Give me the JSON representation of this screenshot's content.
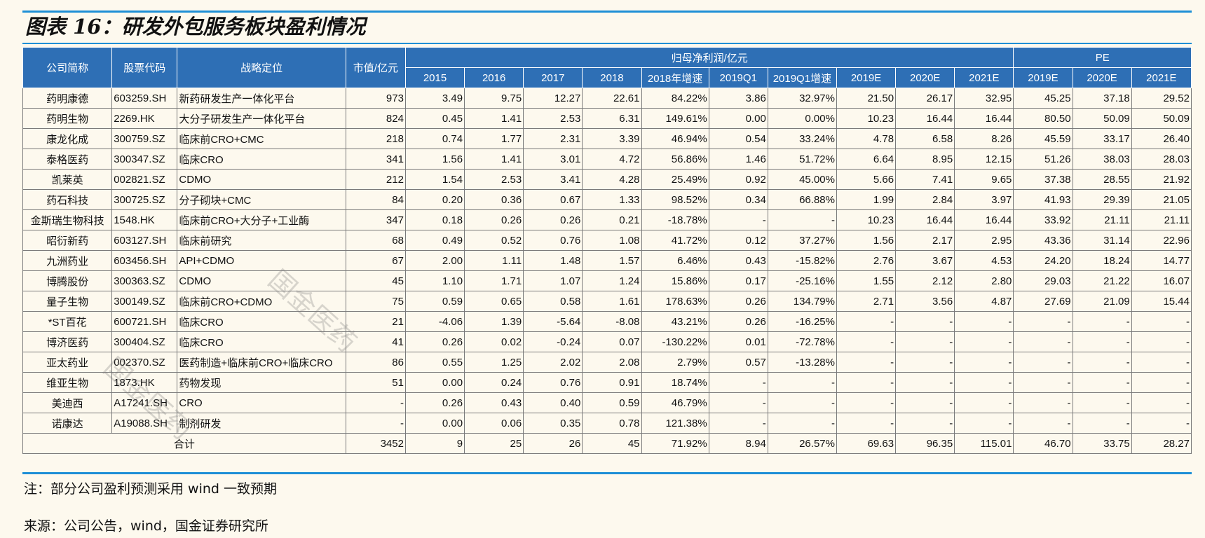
{
  "title": "图表 16：研发外包服务板块盈利情况",
  "header": {
    "company": "公司简称",
    "code": "股票代码",
    "strategy": "战略定位",
    "mktcap": "市值/亿元",
    "profit_group": "归母净利润/亿元",
    "pe_group": "PE",
    "profit_cols": [
      "2015",
      "2016",
      "2017",
      "2018",
      "2018年增速",
      "2019Q1",
      "2019Q1增速",
      "2019E",
      "2020E",
      "2021E"
    ],
    "pe_cols": [
      "2019E",
      "2020E",
      "2021E"
    ]
  },
  "rows": [
    [
      "药明康德",
      "603259.SH",
      "新药研发生产一体化平台",
      "973",
      "3.49",
      "9.75",
      "12.27",
      "22.61",
      "84.22%",
      "3.86",
      "32.97%",
      "21.50",
      "26.17",
      "32.95",
      "45.25",
      "37.18",
      "29.52"
    ],
    [
      "药明生物",
      "2269.HK",
      "大分子研发生产一体化平台",
      "824",
      "0.45",
      "1.41",
      "2.53",
      "6.31",
      "149.61%",
      "0.00",
      "0.00%",
      "10.23",
      "16.44",
      "16.44",
      "80.50",
      "50.09",
      "50.09"
    ],
    [
      "康龙化成",
      "300759.SZ",
      "临床前CRO+CMC",
      "218",
      "0.74",
      "1.77",
      "2.31",
      "3.39",
      "46.94%",
      "0.54",
      "33.24%",
      "4.78",
      "6.58",
      "8.26",
      "45.59",
      "33.17",
      "26.40"
    ],
    [
      "泰格医药",
      "300347.SZ",
      "临床CRO",
      "341",
      "1.56",
      "1.41",
      "3.01",
      "4.72",
      "56.86%",
      "1.46",
      "51.72%",
      "6.64",
      "8.95",
      "12.15",
      "51.26",
      "38.03",
      "28.03"
    ],
    [
      "凯莱英",
      "002821.SZ",
      "CDMO",
      "212",
      "1.54",
      "2.53",
      "3.41",
      "4.28",
      "25.49%",
      "0.92",
      "45.00%",
      "5.66",
      "7.41",
      "9.65",
      "37.38",
      "28.55",
      "21.92"
    ],
    [
      "药石科技",
      "300725.SZ",
      "分子砌块+CMC",
      "84",
      "0.20",
      "0.36",
      "0.67",
      "1.33",
      "98.52%",
      "0.34",
      "66.88%",
      "1.99",
      "2.84",
      "3.97",
      "41.93",
      "29.39",
      "21.05"
    ],
    [
      "金斯瑞生物科技",
      "1548.HK",
      "临床前CRO+大分子+工业酶",
      "347",
      "0.18",
      "0.26",
      "0.26",
      "0.21",
      "-18.78%",
      "-",
      "-",
      "10.23",
      "16.44",
      "16.44",
      "33.92",
      "21.11",
      "21.11"
    ],
    [
      "昭衍新药",
      "603127.SH",
      "临床前研究",
      "68",
      "0.49",
      "0.52",
      "0.76",
      "1.08",
      "41.72%",
      "0.12",
      "37.27%",
      "1.56",
      "2.17",
      "2.95",
      "43.36",
      "31.14",
      "22.96"
    ],
    [
      "九洲药业",
      "603456.SH",
      "API+CDMO",
      "67",
      "2.00",
      "1.11",
      "1.48",
      "1.57",
      "6.46%",
      "0.43",
      "-15.82%",
      "2.76",
      "3.67",
      "4.53",
      "24.20",
      "18.24",
      "14.77"
    ],
    [
      "博腾股份",
      "300363.SZ",
      "CDMO",
      "45",
      "1.10",
      "1.71",
      "1.07",
      "1.24",
      "15.86%",
      "0.17",
      "-25.16%",
      "1.55",
      "2.12",
      "2.80",
      "29.03",
      "21.22",
      "16.07"
    ],
    [
      "量子生物",
      "300149.SZ",
      "临床前CRO+CDMO",
      "75",
      "0.59",
      "0.65",
      "0.58",
      "1.61",
      "178.63%",
      "0.26",
      "134.79%",
      "2.71",
      "3.56",
      "4.87",
      "27.69",
      "21.09",
      "15.44"
    ],
    [
      "*ST百花",
      "600721.SH",
      "临床CRO",
      "21",
      "-4.06",
      "1.39",
      "-5.64",
      "-8.08",
      "43.21%",
      "0.26",
      "-16.25%",
      "-",
      "-",
      "-",
      "-",
      "-",
      "-"
    ],
    [
      "博济医药",
      "300404.SZ",
      "临床CRO",
      "41",
      "0.26",
      "0.02",
      "-0.24",
      "0.07",
      "-130.22%",
      "0.01",
      "-72.78%",
      "-",
      "-",
      "-",
      "-",
      "-",
      "-"
    ],
    [
      "亚太药业",
      "002370.SZ",
      "医药制造+临床前CRO+临床CRO",
      "86",
      "0.55",
      "1.25",
      "2.02",
      "2.08",
      "2.79%",
      "0.57",
      "-13.28%",
      "-",
      "-",
      "-",
      "-",
      "-",
      "-"
    ],
    [
      "维亚生物",
      "1873.HK",
      "药物发现",
      "51",
      "0.00",
      "0.24",
      "0.76",
      "0.91",
      "18.74%",
      "-",
      "-",
      "-",
      "-",
      "-",
      "-",
      "-",
      "-"
    ],
    [
      "美迪西",
      "A17241.SH",
      "CRO",
      "-",
      "0.26",
      "0.43",
      "0.40",
      "0.59",
      "46.79%",
      "-",
      "-",
      "-",
      "-",
      "-",
      "-",
      "-",
      "-"
    ],
    [
      "诺康达",
      "A19088.SH",
      "制剂研发",
      "-",
      "0.00",
      "0.06",
      "0.35",
      "0.78",
      "121.38%",
      "-",
      "-",
      "-",
      "-",
      "-",
      "-",
      "-",
      "-"
    ]
  ],
  "total": {
    "label": "合计",
    "values": [
      "3452",
      "9",
      "25",
      "26",
      "45",
      "71.92%",
      "8.94",
      "26.57%",
      "69.63",
      "96.35",
      "115.01",
      "46.70",
      "33.75",
      "28.27"
    ]
  },
  "notes": {
    "note": "注：部分公司盈利预测采用 wind 一致预期",
    "source": "来源：公司公告，wind，国金证券研究所"
  },
  "watermarks": [
    "国金医药",
    "国金医药"
  ],
  "colors": {
    "header_bg": "#2e6fb5",
    "rule": "#1e8fd6",
    "page_bg": "#fdf9ee"
  }
}
